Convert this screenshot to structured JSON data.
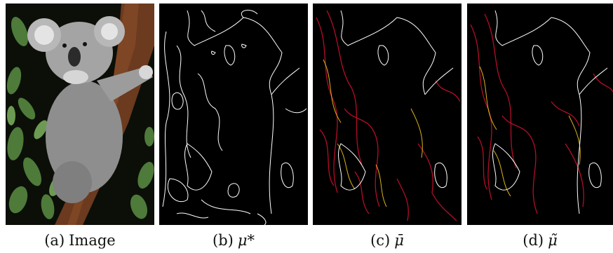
{
  "figure": {
    "panels": [
      {
        "tag": "(a)",
        "label": "Image"
      },
      {
        "tag": "(b)",
        "label": "μ*"
      },
      {
        "tag": "(c)",
        "label": "μ̄"
      },
      {
        "tag": "(d)",
        "label": "μ̃"
      }
    ]
  },
  "colors": {
    "background": "#000000",
    "edge_white": "#ffffff",
    "edge_red": "#c8102e",
    "edge_yellow": "#f2c81e",
    "tree": "#6b3a1f",
    "fur": "#9a9a9a",
    "leaf": "#4e7a3a"
  }
}
